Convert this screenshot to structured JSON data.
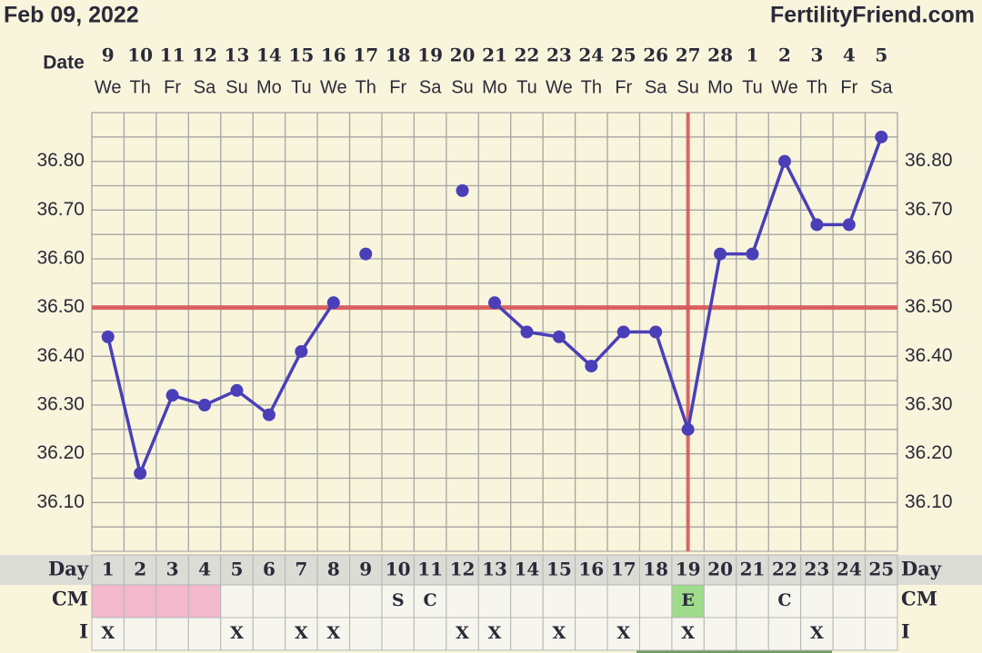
{
  "header": {
    "date": "Feb 09, 2022",
    "site": "FertilityFriend.com"
  },
  "chart_data": {
    "type": "line",
    "x_label": "Date",
    "dates": [
      "9",
      "10",
      "11",
      "12",
      "13",
      "14",
      "15",
      "16",
      "17",
      "18",
      "19",
      "20",
      "21",
      "22",
      "23",
      "24",
      "25",
      "26",
      "27",
      "28",
      "1",
      "2",
      "3",
      "4",
      "5"
    ],
    "weekdays": [
      "We",
      "Th",
      "Fr",
      "Sa",
      "Su",
      "Mo",
      "Tu",
      "We",
      "Th",
      "Fr",
      "Sa",
      "Su",
      "Mo",
      "Tu",
      "We",
      "Th",
      "Fr",
      "Sa",
      "Su",
      "Mo",
      "Tu",
      "We",
      "Th",
      "Fr",
      "Sa"
    ],
    "categories": [
      "1",
      "2",
      "3",
      "4",
      "5",
      "6",
      "7",
      "8",
      "9",
      "10",
      "11",
      "12",
      "13",
      "14",
      "15",
      "16",
      "17",
      "18",
      "19",
      "20",
      "21",
      "22",
      "23",
      "24",
      "25"
    ],
    "day_label": "Day",
    "series": [
      {
        "color": "#4a3fb8",
        "values": [
          36.44,
          36.16,
          36.32,
          36.3,
          36.33,
          36.28,
          36.41,
          36.51,
          null,
          null,
          null,
          null,
          36.51,
          36.45,
          36.44,
          36.38,
          36.45,
          36.45,
          36.25,
          36.61,
          36.61,
          36.8,
          36.67,
          36.67,
          36.85
        ]
      },
      {
        "color": "#4a3fb8",
        "values": [
          null,
          null,
          null,
          null,
          null,
          null,
          null,
          null,
          36.61,
          null,
          null,
          36.74,
          null,
          null,
          null,
          null,
          null,
          null,
          null,
          null,
          null,
          null,
          null,
          null,
          null
        ]
      }
    ],
    "ylim": [
      36.0,
      36.9
    ],
    "yticks": [
      {
        "value": 36.1,
        "label": "36.10"
      },
      {
        "value": 36.2,
        "label": "36.20"
      },
      {
        "value": 36.3,
        "label": "36.30"
      },
      {
        "value": 36.4,
        "label": "36.40"
      },
      {
        "value": 36.5,
        "label": "36.50"
      },
      {
        "value": 36.6,
        "label": "36.60"
      },
      {
        "value": 36.7,
        "label": "36.70"
      },
      {
        "value": 36.8,
        "label": "36.80"
      }
    ],
    "grid": true,
    "coverline": 36.5,
    "coverline_color": "#d9575a",
    "ovulation_day": "19",
    "cm": {
      "label": "CM",
      "values": [
        null,
        null,
        null,
        null,
        null,
        null,
        null,
        null,
        null,
        "S",
        "C",
        null,
        null,
        null,
        null,
        null,
        null,
        null,
        "E",
        null,
        null,
        "C",
        null,
        null,
        null
      ]
    },
    "menstruation": [
      true,
      true,
      true,
      true,
      false,
      false,
      false,
      false,
      false,
      false,
      false,
      false,
      false,
      false,
      false,
      false,
      false,
      false,
      false,
      false,
      false,
      false,
      false,
      false,
      false
    ],
    "intercourse": {
      "label": "I",
      "values": [
        "X",
        null,
        null,
        null,
        "X",
        null,
        "X",
        "X",
        null,
        null,
        null,
        "X",
        "X",
        null,
        "X",
        null,
        "X",
        null,
        "X",
        null,
        null,
        null,
        "X",
        null,
        null
      ]
    }
  }
}
